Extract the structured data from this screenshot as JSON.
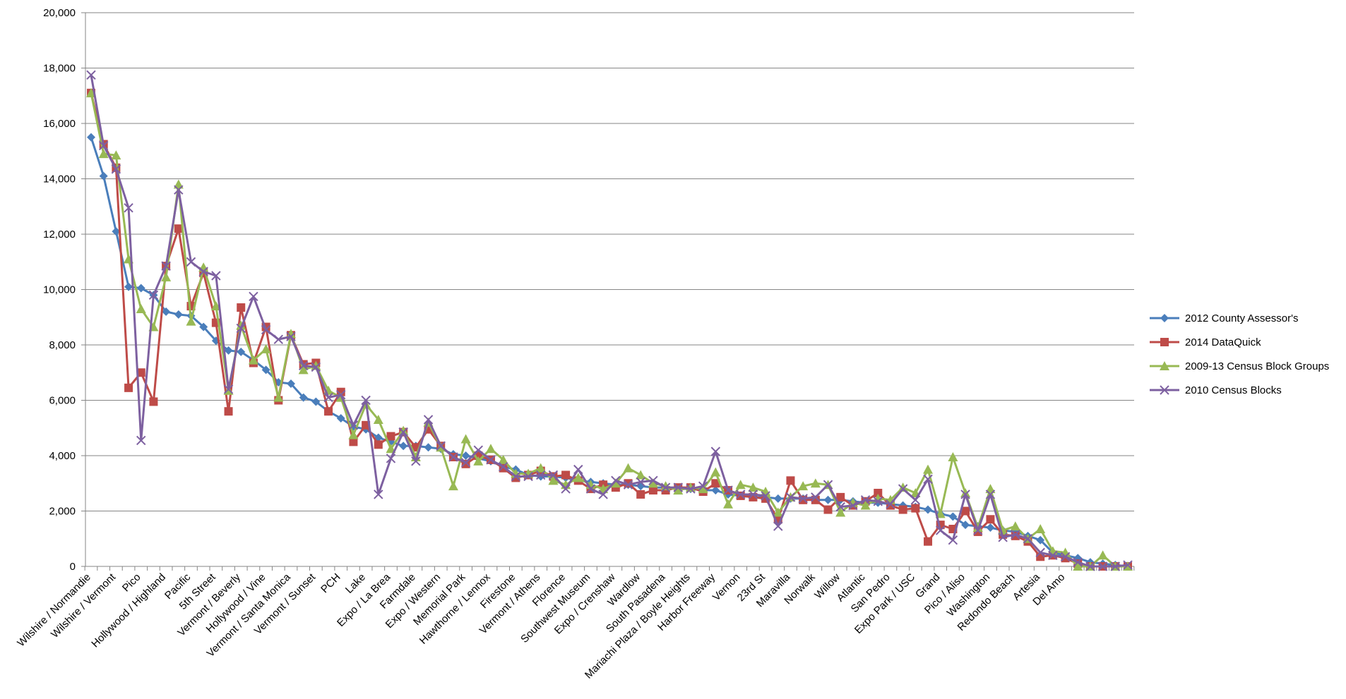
{
  "chart_data": {
    "type": "line",
    "title": "",
    "xlabel": "",
    "ylabel": "",
    "ylim": [
      0,
      20000
    ],
    "y_ticks": [
      "0",
      "2,000",
      "4,000",
      "6,000",
      "8,000",
      "10,000",
      "12,000",
      "14,000",
      "16,000",
      "18,000",
      "20,000"
    ],
    "grid": "horizontal",
    "legend_position": "right",
    "x_tick_labels": [
      "Wilshire / Normandie",
      "Wilshire / Vermont",
      "Pico",
      "Hollywood / Highland",
      "Pacific",
      "5th Street",
      "Vermont / Beverly",
      "Hollywood / Vine",
      "Vermont / Santa Monica",
      "Vermont / Sunset",
      "PCH",
      "Lake",
      "Expo / La Brea",
      "Farmdale",
      "Expo / Western",
      "Memorial Park",
      "Hawthorne / Lennox",
      "Firestone",
      "Vermont / Athens",
      "Florence",
      "Southwest Museum",
      "Expo / Crenshaw",
      "Wardlow",
      "South Pasadena",
      "Mariachi Plaza / Boyle Heights",
      "Harbor Freeway",
      "Vernon",
      "23rd St",
      "Maravilla",
      "Norwalk",
      "Willow",
      "Atlantic",
      "San Pedro",
      "Expo Park / USC",
      "Grand",
      "Pico / Aliso",
      "Washington",
      "Redondo Beach",
      "Artesia",
      "Del Amo"
    ],
    "series": [
      {
        "name": "2012 County Assessor's",
        "color": "#4a7ebb",
        "marker": "diamond",
        "values": [
          15500,
          14100,
          12100,
          10100,
          10050,
          9800,
          9200,
          9100,
          9050,
          8650,
          8150,
          7800,
          7750,
          7450,
          7100,
          6650,
          6600,
          6100,
          5950,
          5600,
          5350,
          5050,
          4950,
          4650,
          4500,
          4350,
          4350,
          4300,
          4250,
          4050,
          4000,
          3900,
          3800,
          3600,
          3500,
          3300,
          3250,
          3250,
          3200,
          3100,
          3050,
          3000,
          2950,
          2950,
          2900,
          2850,
          2850,
          2800,
          2800,
          2750,
          2750,
          2600,
          2550,
          2500,
          2500,
          2450,
          2450,
          2450,
          2400,
          2400,
          2400,
          2350,
          2300,
          2300,
          2250,
          2200,
          2150,
          2050,
          1900,
          1800,
          1500,
          1450,
          1400,
          1300,
          1250,
          1100,
          950,
          500,
          400,
          300,
          150,
          100,
          50,
          0
        ]
      },
      {
        "name": "2014  DataQuick",
        "color": "#be4b48",
        "marker": "square",
        "values": [
          17100,
          15250,
          14400,
          6450,
          7000,
          5950,
          10850,
          12200,
          9400,
          10600,
          8800,
          5600,
          9350,
          7350,
          8650,
          6000,
          8350,
          7300,
          7350,
          5600,
          6300,
          4500,
          5100,
          4400,
          4700,
          4850,
          4300,
          4950,
          4350,
          3950,
          3700,
          4000,
          3850,
          3550,
          3200,
          3300,
          3450,
          3250,
          3300,
          3100,
          2800,
          2950,
          2850,
          3000,
          2600,
          2750,
          2750,
          2850,
          2850,
          2700,
          3000,
          2750,
          2550,
          2500,
          2450,
          1700,
          3100,
          2400,
          2400,
          2050,
          2500,
          2200,
          2350,
          2650,
          2200,
          2050,
          2100,
          900,
          1500,
          1350,
          2000,
          1250,
          1700,
          1150,
          1100,
          900,
          350,
          400,
          300,
          100,
          0,
          0,
          0,
          0
        ]
      },
      {
        "name": "2009-13 Census Block Groups",
        "color": "#98b954",
        "marker": "triangle",
        "values": [
          17100,
          14900,
          14850,
          11100,
          9300,
          8650,
          10450,
          13800,
          8850,
          10800,
          9400,
          6350,
          8700,
          7450,
          7850,
          6100,
          8400,
          7100,
          7250,
          6350,
          6100,
          4750,
          5850,
          5300,
          4250,
          4900,
          3950,
          5200,
          4300,
          2900,
          4600,
          3800,
          4250,
          3850,
          3350,
          3350,
          3550,
          3100,
          2950,
          3200,
          2950,
          2800,
          3000,
          3550,
          3300,
          3000,
          2900,
          2750,
          2850,
          2800,
          3400,
          2250,
          2950,
          2850,
          2700,
          1950,
          2500,
          2900,
          3000,
          2950,
          1950,
          2300,
          2200,
          2450,
          2400,
          2850,
          2650,
          3500,
          1900,
          3950,
          2650,
          1400,
          2800,
          1300,
          1450,
          1000,
          1350,
          550,
          500,
          0,
          0,
          400,
          0,
          0
        ]
      },
      {
        "name": "2010 Census Blocks",
        "color": "#7d60a0",
        "marker": "x",
        "values": [
          17750,
          15200,
          14350,
          12950,
          4550,
          9800,
          10850,
          13600,
          11000,
          10650,
          10500,
          6400,
          8600,
          9750,
          8550,
          8200,
          8300,
          7250,
          7200,
          6100,
          6200,
          5100,
          6000,
          2600,
          3900,
          4850,
          3800,
          5300,
          4350,
          3950,
          3750,
          4200,
          3850,
          3600,
          3250,
          3250,
          3300,
          3300,
          2800,
          3500,
          2800,
          2600,
          3100,
          2950,
          3050,
          3100,
          2850,
          2850,
          2800,
          2900,
          4150,
          2750,
          2600,
          2600,
          2550,
          1450,
          2500,
          2450,
          2500,
          2950,
          2150,
          2200,
          2400,
          2350,
          2250,
          2800,
          2400,
          3150,
          1300,
          950,
          2600,
          1300,
          2600,
          1050,
          1150,
          1000,
          500,
          400,
          350,
          150,
          0,
          0,
          0,
          50
        ]
      }
    ]
  }
}
